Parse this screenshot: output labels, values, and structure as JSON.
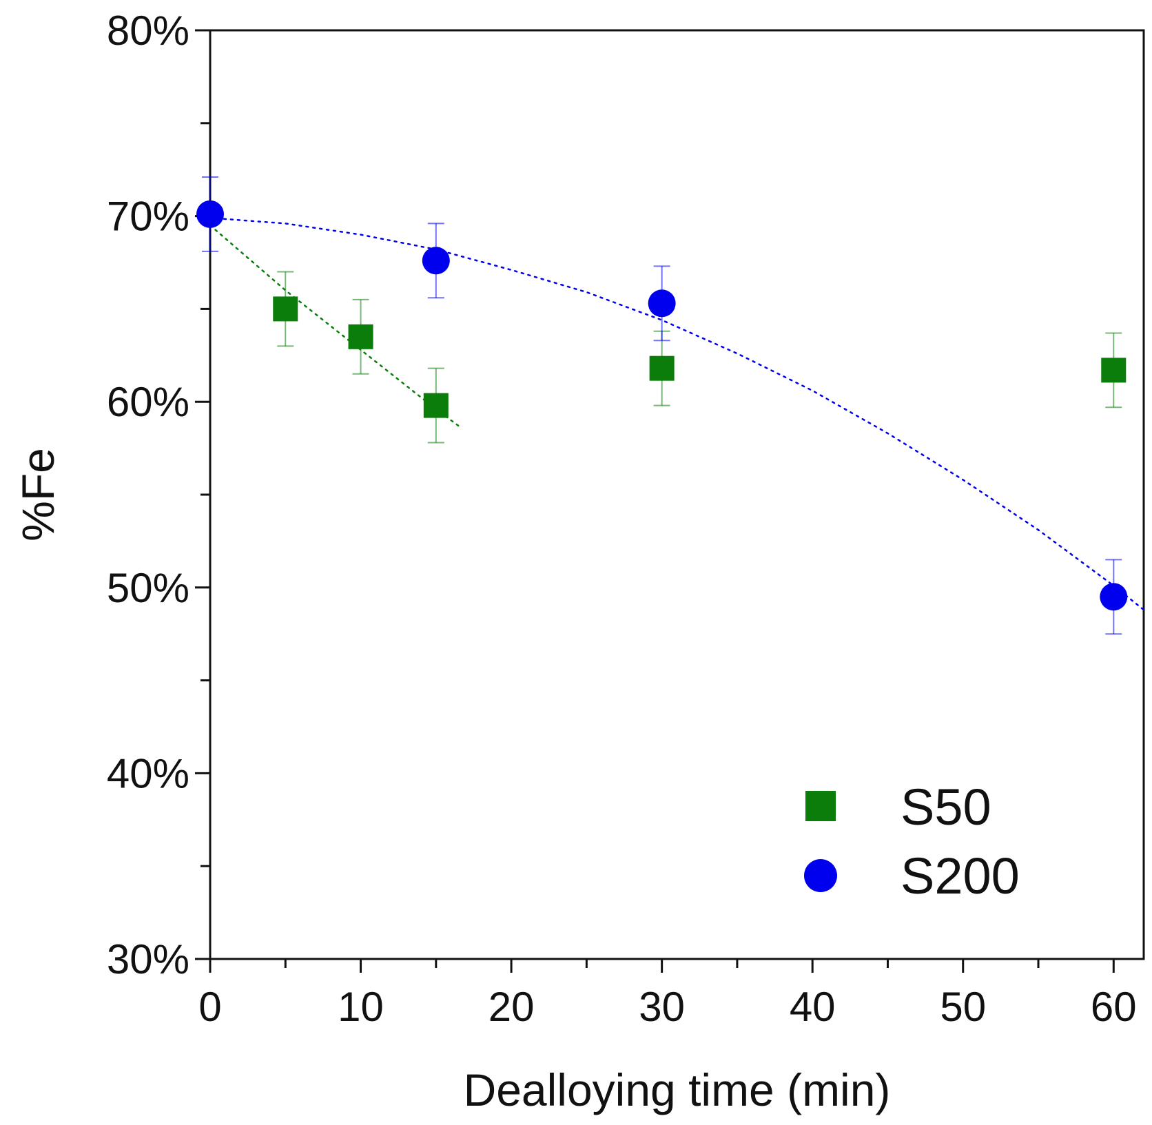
{
  "chart_data": {
    "type": "scatter",
    "title": "",
    "xlabel": "Dealloying time (min)",
    "ylabel": "%Fe",
    "xlim": [
      0,
      62
    ],
    "ylim": [
      30,
      80
    ],
    "x_ticks": [
      0,
      10,
      20,
      30,
      40,
      50,
      60
    ],
    "x_tick_labels": [
      "0",
      "10",
      "20",
      "30",
      "40",
      "50",
      "60"
    ],
    "x_minor_ticks": [
      5,
      15,
      25,
      35,
      45,
      55
    ],
    "y_ticks": [
      30,
      40,
      50,
      60,
      70,
      80
    ],
    "y_tick_labels": [
      "30%",
      "40%",
      "50%",
      "60%",
      "70%",
      "80%"
    ],
    "y_minor_ticks": [
      35,
      45,
      55,
      65,
      75
    ],
    "grid": false,
    "legend_position": "bottom-right",
    "series": [
      {
        "name": "S50",
        "marker": "square",
        "color": "#0a7d0a",
        "points": [
          {
            "x": 5,
            "y": 65.0,
            "err": 2.0
          },
          {
            "x": 10,
            "y": 63.5,
            "err": 2.0
          },
          {
            "x": 15,
            "y": 59.8,
            "err": 2.0
          },
          {
            "x": 30,
            "y": 61.8,
            "err": 2.0
          },
          {
            "x": 60,
            "y": 61.7,
            "err": 2.0
          }
        ],
        "trend": {
          "style": "dotted",
          "x": [
            0,
            5,
            10,
            15,
            16.5
          ],
          "y": [
            69.5,
            66.0,
            62.8,
            59.6,
            58.7
          ]
        }
      },
      {
        "name": "S200",
        "marker": "circle",
        "color": "#0000ee",
        "points": [
          {
            "x": 0,
            "y": 70.1,
            "err": 2.0
          },
          {
            "x": 15,
            "y": 67.6,
            "err": 2.0
          },
          {
            "x": 30,
            "y": 65.3,
            "err": 2.0
          },
          {
            "x": 60,
            "y": 49.5,
            "err": 2.0
          }
        ],
        "trend": {
          "style": "dotted",
          "x": [
            0,
            5,
            10,
            15,
            20,
            25,
            30,
            35,
            40,
            45,
            50,
            55,
            60,
            62
          ],
          "y": [
            69.9,
            69.6,
            69.0,
            68.2,
            67.1,
            65.9,
            64.4,
            62.6,
            60.6,
            58.3,
            55.8,
            53.1,
            50.1,
            48.8
          ]
        }
      }
    ]
  }
}
